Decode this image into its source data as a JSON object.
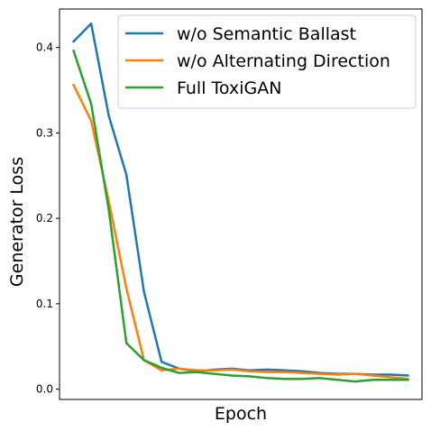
{
  "chart_data": {
    "type": "line",
    "xlabel": "Epoch",
    "ylabel": "Generator Loss",
    "x": [
      1,
      2,
      3,
      4,
      5,
      6,
      7,
      8,
      9,
      10,
      11,
      12,
      13,
      14,
      15,
      16,
      17,
      18,
      19,
      20
    ],
    "xlim": [
      0.2,
      20.8
    ],
    "ylim": [
      -0.012,
      0.445
    ],
    "yticks": [
      0.0,
      0.1,
      0.2,
      0.3,
      0.4
    ],
    "ytick_labels": [
      "0.0",
      "0.1",
      "0.2",
      "0.3",
      "0.4"
    ],
    "grid": false,
    "legend_position": "top-right",
    "series": [
      {
        "name": "w/o Semantic Ballast",
        "color": "#1f77b4",
        "values": [
          0.407,
          0.428,
          0.32,
          0.251,
          0.114,
          0.032,
          0.024,
          0.021,
          0.023,
          0.024,
          0.022,
          0.023,
          0.022,
          0.021,
          0.019,
          0.018,
          0.018,
          0.017,
          0.017,
          0.016
        ]
      },
      {
        "name": "w/o Alternating Direction",
        "color": "#ff7f0e",
        "values": [
          0.356,
          0.314,
          0.22,
          0.118,
          0.034,
          0.022,
          0.024,
          0.022,
          0.022,
          0.023,
          0.021,
          0.02,
          0.02,
          0.019,
          0.018,
          0.017,
          0.018,
          0.016,
          0.014,
          0.012
        ]
      },
      {
        "name": "Full ToxiGAN",
        "color": "#2ca02c",
        "values": [
          0.396,
          0.334,
          0.21,
          0.054,
          0.034,
          0.025,
          0.019,
          0.02,
          0.018,
          0.016,
          0.015,
          0.013,
          0.012,
          0.012,
          0.013,
          0.011,
          0.009,
          0.011,
          0.011,
          0.011
        ]
      }
    ]
  }
}
